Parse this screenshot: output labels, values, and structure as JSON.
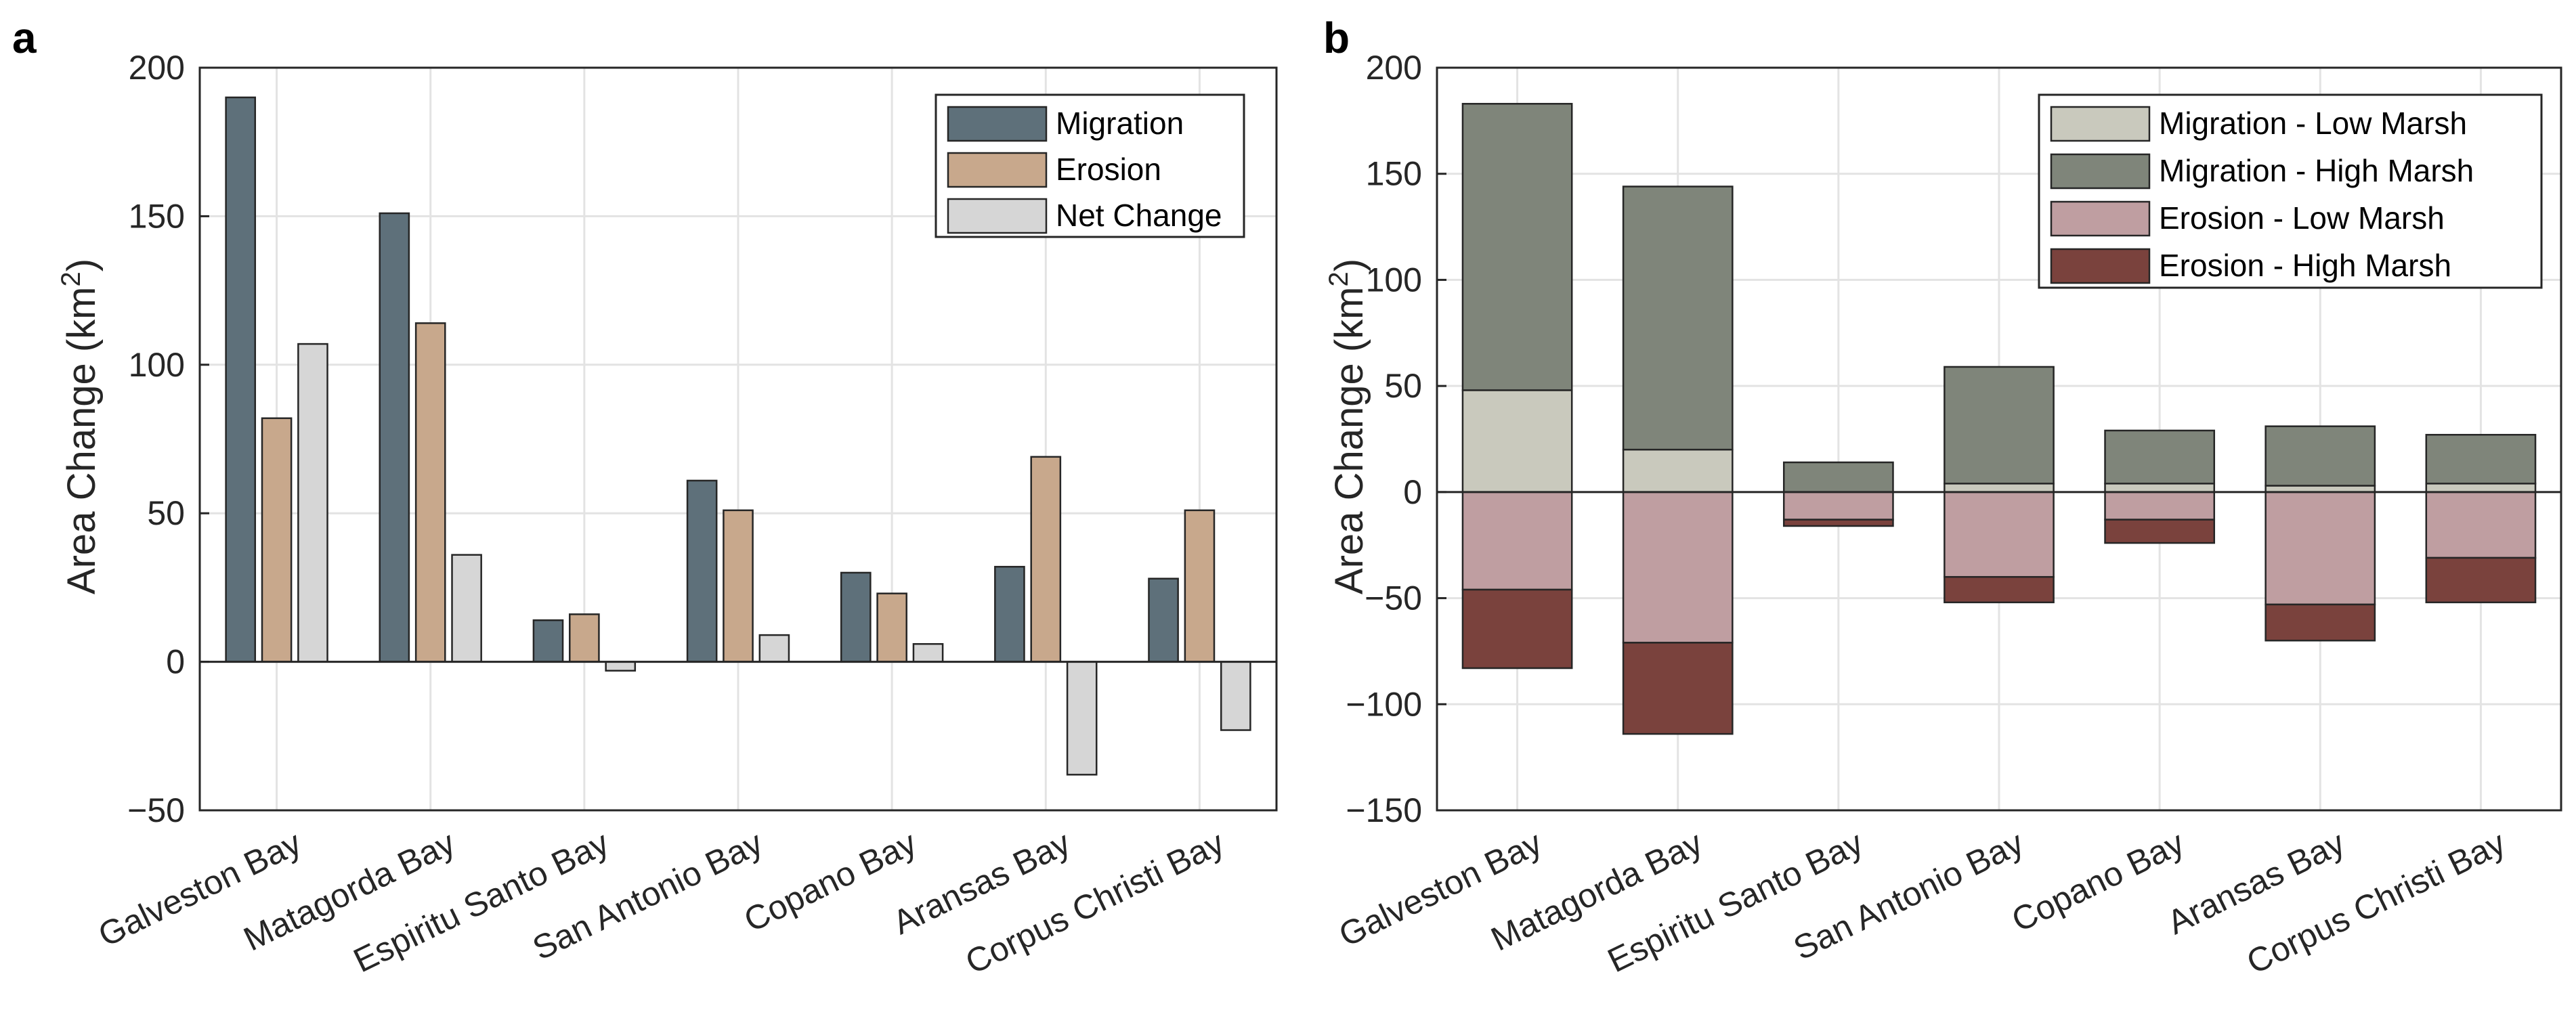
{
  "chart_data": [
    {
      "panel": "a",
      "type": "bar",
      "categories": [
        "Galveston Bay",
        "Matagorda Bay",
        "Espiritu Santo Bay",
        "San Antonio Bay",
        "Copano Bay",
        "Aransas Bay",
        "Corpus Christi Bay"
      ],
      "series": [
        {
          "name": "Migration",
          "color": "#5e707a",
          "values": [
            190,
            151,
            14,
            61,
            30,
            32,
            28
          ]
        },
        {
          "name": "Erosion",
          "color": "#c8a88c",
          "values": [
            82,
            114,
            16,
            51,
            23,
            69,
            51
          ]
        },
        {
          "name": "Net Change",
          "color": "#d6d6d6",
          "values": [
            107,
            36,
            -3,
            9,
            6,
            -38,
            -23
          ]
        }
      ],
      "ylabel": "Area Change (km",
      "ylabel_sup": "2",
      "ylabel_end": ")",
      "ylim": [
        -50,
        200
      ],
      "yticks": [
        -50,
        0,
        50,
        100,
        150,
        200
      ],
      "ytick_labels": [
        "−50",
        "0",
        "50",
        "100",
        "150",
        "200"
      ],
      "grid": true,
      "legend_position": "top-right"
    },
    {
      "panel": "b",
      "type": "bar",
      "stacked": true,
      "categories": [
        "Galveston Bay",
        "Matagorda Bay",
        "Espiritu Santo Bay",
        "San Antonio Bay",
        "Copano Bay",
        "Aransas Bay",
        "Corpus Christi Bay"
      ],
      "series": [
        {
          "name": "Migration - Low Marsh",
          "color": "#c9c9bd",
          "values": [
            48,
            20,
            0,
            4,
            4,
            3,
            4
          ]
        },
        {
          "name": "Migration - High Marsh",
          "color": "#7f857a",
          "values": [
            135,
            124,
            14,
            55,
            25,
            28,
            23
          ]
        },
        {
          "name": "Erosion - Low Marsh",
          "color": "#bf9ea1",
          "values": [
            -46,
            -71,
            -13,
            -40,
            -13,
            -53,
            -31
          ]
        },
        {
          "name": "Erosion - High Marsh",
          "color": "#7a423d",
          "values": [
            -37,
            -43,
            -3,
            -12,
            -11,
            -17,
            -21
          ]
        }
      ],
      "ylabel": "Area Change (km",
      "ylabel_sup": "2",
      "ylabel_end": ")",
      "ylim": [
        -150,
        200
      ],
      "yticks": [
        -150,
        -100,
        -50,
        0,
        50,
        100,
        150,
        200
      ],
      "ytick_labels": [
        "−150",
        "−100",
        "−50",
        "0",
        "50",
        "100",
        "150",
        "200"
      ],
      "grid": true,
      "legend_position": "top-right"
    }
  ]
}
